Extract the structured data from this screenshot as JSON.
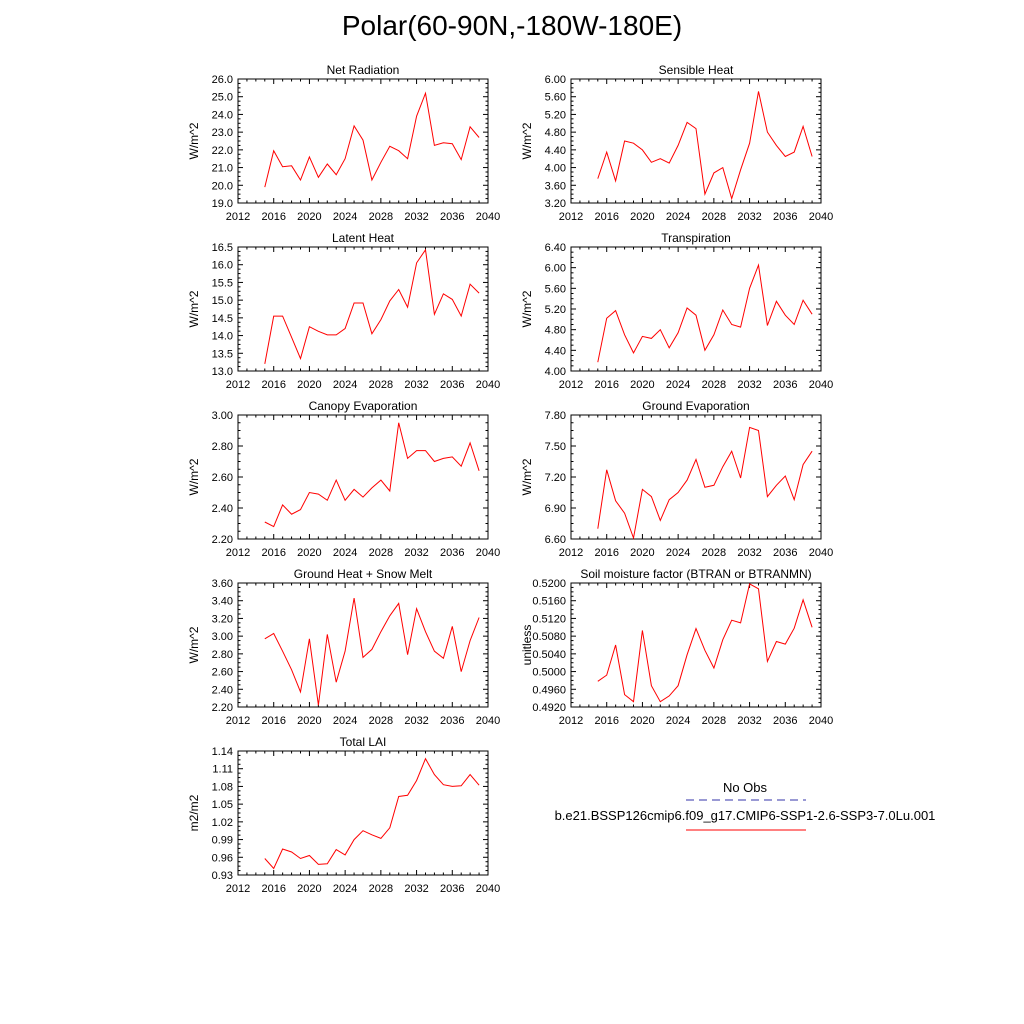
{
  "title": "Polar(60-90N,-180W-180E)",
  "legend": {
    "obs_label": "No Obs",
    "obs_color": "#3333aa",
    "run_label": "b.e21.BSSP126cmip6.f09_g17.CMIP6-SSP1-2.6-SSP3-7.0Lu.001",
    "run_color": "#ff0000"
  },
  "line_color": "#ff0000",
  "chart_data": [
    {
      "type": "line",
      "title": "Net Radiation",
      "ylabel": "W/m^2",
      "xlim": [
        2012,
        2040
      ],
      "ylim": [
        19.0,
        26.0
      ],
      "xticks": [
        "2012",
        "2016",
        "2020",
        "2024",
        "2028",
        "2032",
        "2036",
        "2040"
      ],
      "yticks": [
        "19.0",
        "20.0",
        "21.0",
        "22.0",
        "23.0",
        "24.0",
        "25.0",
        "26.0"
      ],
      "x": [
        2015,
        2016,
        2017,
        2018,
        2019,
        2020,
        2021,
        2022,
        2023,
        2024,
        2025,
        2026,
        2027,
        2028,
        2029,
        2030,
        2031,
        2032,
        2033,
        2034,
        2035,
        2036,
        2037,
        2038,
        2039
      ],
      "y": [
        19.9,
        21.95,
        21.05,
        21.1,
        20.3,
        21.6,
        20.45,
        21.2,
        20.6,
        21.5,
        23.35,
        22.55,
        20.3,
        21.3,
        22.2,
        21.95,
        21.5,
        23.9,
        25.2,
        22.25,
        22.4,
        22.35,
        21.45,
        23.3,
        22.7
      ]
    },
    {
      "type": "line",
      "title": "Sensible Heat",
      "ylabel": "W/m^2",
      "xlim": [
        2012,
        2040
      ],
      "ylim": [
        3.2,
        6.0
      ],
      "xticks": [
        "2012",
        "2016",
        "2020",
        "2024",
        "2028",
        "2032",
        "2036",
        "2040"
      ],
      "yticks": [
        "3.20",
        "3.60",
        "4.00",
        "4.40",
        "4.80",
        "5.20",
        "5.60",
        "6.00"
      ],
      "x": [
        2015,
        2016,
        2017,
        2018,
        2019,
        2020,
        2021,
        2022,
        2023,
        2024,
        2025,
        2026,
        2027,
        2028,
        2029,
        2030,
        2031,
        2032,
        2033,
        2034,
        2035,
        2036,
        2037,
        2038,
        2039
      ],
      "y": [
        3.75,
        4.35,
        3.7,
        4.6,
        4.55,
        4.4,
        4.12,
        4.2,
        4.1,
        4.5,
        5.02,
        4.88,
        3.4,
        3.88,
        4.0,
        3.3,
        3.95,
        4.55,
        5.72,
        4.8,
        4.5,
        4.25,
        4.35,
        4.93,
        4.25
      ]
    },
    {
      "type": "line",
      "title": "Latent Heat",
      "ylabel": "W/m^2",
      "xlim": [
        2012,
        2040
      ],
      "ylim": [
        13.0,
        16.5
      ],
      "xticks": [
        "2012",
        "2016",
        "2020",
        "2024",
        "2028",
        "2032",
        "2036",
        "2040"
      ],
      "yticks": [
        "13.0",
        "13.5",
        "14.0",
        "14.5",
        "15.0",
        "15.5",
        "16.0",
        "16.5"
      ],
      "x": [
        2015,
        2016,
        2017,
        2018,
        2019,
        2020,
        2021,
        2022,
        2023,
        2024,
        2025,
        2026,
        2027,
        2028,
        2029,
        2030,
        2031,
        2032,
        2033,
        2034,
        2035,
        2036,
        2037,
        2038,
        2039
      ],
      "y": [
        13.2,
        14.55,
        14.55,
        13.95,
        13.35,
        14.25,
        14.12,
        14.02,
        14.02,
        14.2,
        14.92,
        14.92,
        14.05,
        14.45,
        14.98,
        15.3,
        14.8,
        16.05,
        16.42,
        14.6,
        15.18,
        15.02,
        14.55,
        15.45,
        15.2
      ]
    },
    {
      "type": "line",
      "title": "Transpiration",
      "ylabel": "W/m^2",
      "xlim": [
        2012,
        2040
      ],
      "ylim": [
        4.0,
        6.4
      ],
      "xticks": [
        "2012",
        "2016",
        "2020",
        "2024",
        "2028",
        "2032",
        "2036",
        "2040"
      ],
      "yticks": [
        "4.00",
        "4.40",
        "4.80",
        "5.20",
        "5.60",
        "6.00",
        "6.40"
      ],
      "x": [
        2015,
        2016,
        2017,
        2018,
        2019,
        2020,
        2021,
        2022,
        2023,
        2024,
        2025,
        2026,
        2027,
        2028,
        2029,
        2030,
        2031,
        2032,
        2033,
        2034,
        2035,
        2036,
        2037,
        2038,
        2039
      ],
      "y": [
        4.17,
        5.02,
        5.17,
        4.7,
        4.35,
        4.67,
        4.63,
        4.8,
        4.45,
        4.74,
        5.22,
        5.08,
        4.4,
        4.7,
        5.18,
        4.9,
        4.85,
        5.6,
        6.05,
        4.88,
        5.35,
        5.08,
        4.9,
        5.37,
        5.1
      ]
    },
    {
      "type": "line",
      "title": "Canopy Evaporation",
      "ylabel": "W/m^2",
      "xlim": [
        2012,
        2040
      ],
      "ylim": [
        2.2,
        3.0
      ],
      "xticks": [
        "2012",
        "2016",
        "2020",
        "2024",
        "2028",
        "2032",
        "2036",
        "2040"
      ],
      "yticks": [
        "2.20",
        "2.40",
        "2.60",
        "2.80",
        "3.00"
      ],
      "x": [
        2015,
        2016,
        2017,
        2018,
        2019,
        2020,
        2021,
        2022,
        2023,
        2024,
        2025,
        2026,
        2027,
        2028,
        2029,
        2030,
        2031,
        2032,
        2033,
        2034,
        2035,
        2036,
        2037,
        2038,
        2039
      ],
      "y": [
        2.31,
        2.28,
        2.42,
        2.36,
        2.39,
        2.5,
        2.49,
        2.45,
        2.58,
        2.45,
        2.52,
        2.47,
        2.53,
        2.58,
        2.51,
        2.95,
        2.72,
        2.77,
        2.77,
        2.7,
        2.72,
        2.73,
        2.67,
        2.82,
        2.64
      ]
    },
    {
      "type": "line",
      "title": "Ground Evaporation",
      "ylabel": "W/m^2",
      "xlim": [
        2012,
        2040
      ],
      "ylim": [
        6.6,
        7.8
      ],
      "xticks": [
        "2012",
        "2016",
        "2020",
        "2024",
        "2028",
        "2032",
        "2036",
        "2040"
      ],
      "yticks": [
        "6.60",
        "6.90",
        "7.20",
        "7.50",
        "7.80"
      ],
      "x": [
        2015,
        2016,
        2017,
        2018,
        2019,
        2020,
        2021,
        2022,
        2023,
        2024,
        2025,
        2026,
        2027,
        2028,
        2029,
        2030,
        2031,
        2032,
        2033,
        2034,
        2035,
        2036,
        2037,
        2038,
        2039
      ],
      "y": [
        6.7,
        7.27,
        6.97,
        6.85,
        6.61,
        7.08,
        7.01,
        6.78,
        6.98,
        7.05,
        7.17,
        7.37,
        7.1,
        7.12,
        7.3,
        7.45,
        7.19,
        7.68,
        7.65,
        7.01,
        7.12,
        7.21,
        6.98,
        7.32,
        7.45
      ]
    },
    {
      "type": "line",
      "title": "Ground Heat + Snow Melt",
      "ylabel": "W/m^2",
      "xlim": [
        2012,
        2040
      ],
      "ylim": [
        2.2,
        3.6
      ],
      "xticks": [
        "2012",
        "2016",
        "2020",
        "2024",
        "2028",
        "2032",
        "2036",
        "2040"
      ],
      "yticks": [
        "2.20",
        "2.40",
        "2.60",
        "2.80",
        "3.00",
        "3.20",
        "3.40",
        "3.60"
      ],
      "x": [
        2015,
        2016,
        2017,
        2018,
        2019,
        2020,
        2021,
        2022,
        2023,
        2024,
        2025,
        2026,
        2027,
        2028,
        2029,
        2030,
        2031,
        2032,
        2033,
        2034,
        2035,
        2036,
        2037,
        2038,
        2039
      ],
      "y": [
        2.97,
        3.03,
        2.83,
        2.62,
        2.37,
        2.97,
        2.22,
        3.02,
        2.48,
        2.83,
        3.43,
        2.76,
        2.85,
        3.05,
        3.23,
        3.37,
        2.79,
        3.31,
        3.05,
        2.83,
        2.75,
        3.11,
        2.6,
        2.95,
        3.21
      ]
    },
    {
      "type": "line",
      "title": "Soil moisture factor (BTRAN or BTRANMN)",
      "ylabel": "unitless",
      "xlim": [
        2012,
        2040
      ],
      "ylim": [
        0.492,
        0.52
      ],
      "xticks": [
        "2012",
        "2016",
        "2020",
        "2024",
        "2028",
        "2032",
        "2036",
        "2040"
      ],
      "yticks": [
        "0.4920",
        "0.4960",
        "0.5000",
        "0.5040",
        "0.5080",
        "0.5120",
        "0.5160",
        "0.5200"
      ],
      "x": [
        2015,
        2016,
        2017,
        2018,
        2019,
        2020,
        2021,
        2022,
        2023,
        2024,
        2025,
        2026,
        2027,
        2028,
        2029,
        2030,
        2031,
        2032,
        2033,
        2034,
        2035,
        2036,
        2037,
        2038,
        2039
      ],
      "y": [
        0.4978,
        0.4992,
        0.506,
        0.4948,
        0.4932,
        0.5093,
        0.4968,
        0.4932,
        0.4945,
        0.4968,
        0.5038,
        0.5097,
        0.5048,
        0.5008,
        0.5072,
        0.5116,
        0.511,
        0.5198,
        0.5187,
        0.5023,
        0.5068,
        0.5062,
        0.5098,
        0.5162,
        0.51
      ]
    },
    {
      "type": "line",
      "title": "Total LAI",
      "ylabel": "m2/m2",
      "xlim": [
        2012,
        2040
      ],
      "ylim": [
        0.93,
        1.14
      ],
      "xticks": [
        "2012",
        "2016",
        "2020",
        "2024",
        "2028",
        "2032",
        "2036",
        "2040"
      ],
      "yticks": [
        "0.93",
        "0.96",
        "0.99",
        "1.02",
        "1.05",
        "1.08",
        "1.11",
        "1.14"
      ],
      "x": [
        2015,
        2016,
        2017,
        2018,
        2019,
        2020,
        2021,
        2022,
        2023,
        2024,
        2025,
        2026,
        2027,
        2028,
        2029,
        2030,
        2031,
        2032,
        2033,
        2034,
        2035,
        2036,
        2037,
        2038,
        2039
      ],
      "y": [
        0.958,
        0.941,
        0.974,
        0.969,
        0.958,
        0.963,
        0.948,
        0.949,
        0.973,
        0.964,
        0.99,
        1.005,
        0.998,
        0.992,
        1.01,
        1.063,
        1.065,
        1.09,
        1.127,
        1.1,
        1.083,
        1.08,
        1.081,
        1.1,
        1.082
      ]
    }
  ]
}
